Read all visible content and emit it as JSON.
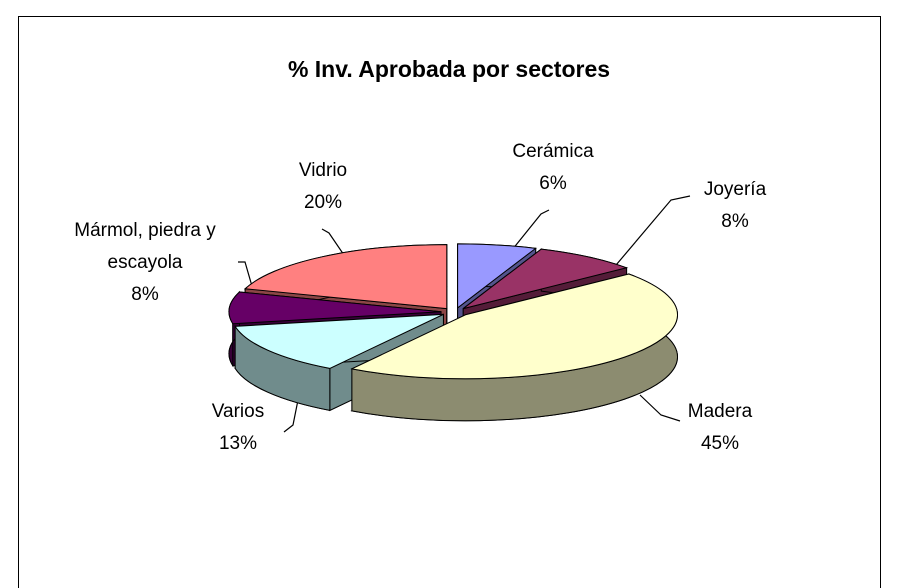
{
  "chart_data": {
    "type": "pie",
    "title": "% Inv. Aprobada por sectores",
    "categories": [
      "Cerámica",
      "Joyería",
      "Madera",
      "Varios",
      "Mármol, piedra y escayola",
      "Vidrio"
    ],
    "values": [
      6,
      8,
      45,
      13,
      8,
      20
    ],
    "value_labels": [
      "6%",
      "8%",
      "45%",
      "13%",
      "8%",
      "20%"
    ],
    "colors": [
      "#9999ff",
      "#993366",
      "#ffffcc",
      "#ccffff",
      "#660066",
      "#ff8080"
    ]
  }
}
